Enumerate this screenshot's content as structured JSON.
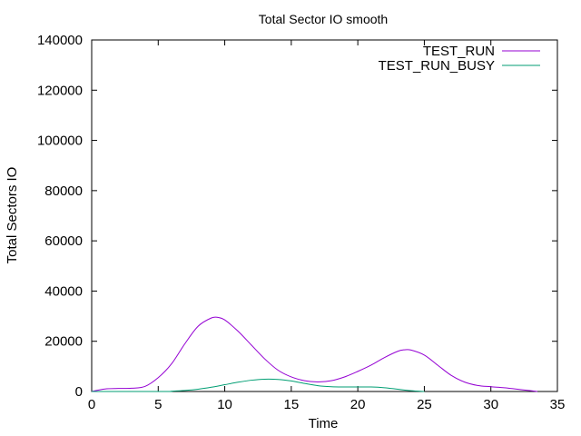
{
  "chart_data": {
    "type": "line",
    "title": "Total Sector IO smooth",
    "xlabel": "Time",
    "ylabel": "Total Sectors IO",
    "xlim": [
      0,
      35
    ],
    "ylim": [
      0,
      140000
    ],
    "xticks": [
      0,
      5,
      10,
      15,
      20,
      25,
      30,
      35
    ],
    "yticks": [
      0,
      20000,
      40000,
      60000,
      80000,
      100000,
      120000,
      140000
    ],
    "grid": false,
    "legend_position": "top-right",
    "series": [
      {
        "name": "TEST_RUN",
        "color": "#9400d3",
        "x": [
          0,
          1,
          2,
          3,
          4,
          5,
          6,
          7,
          8,
          9,
          9.5,
          10,
          11,
          12,
          13,
          14,
          15,
          16,
          17,
          18,
          19,
          20,
          21,
          22,
          23,
          23.5,
          24,
          25,
          26,
          27,
          28,
          29,
          30,
          31,
          32,
          33,
          33.5
        ],
        "y": [
          0,
          1000,
          1200,
          1300,
          2000,
          5500,
          11000,
          19000,
          26000,
          29300,
          29500,
          28500,
          24000,
          18500,
          13000,
          8500,
          5800,
          4300,
          3800,
          4300,
          5800,
          8000,
          10500,
          13500,
          16000,
          16600,
          16500,
          14500,
          10500,
          6500,
          3800,
          2400,
          1900,
          1500,
          900,
          300,
          0
        ]
      },
      {
        "name": "TEST_RUN_BUSY",
        "color": "#009e73",
        "x": [
          0,
          5.5,
          6,
          7,
          8,
          9,
          10,
          11,
          12,
          13,
          14,
          15,
          16,
          17,
          18,
          19,
          20,
          21,
          22,
          23,
          24,
          25
        ],
        "y": [
          0,
          0,
          100,
          400,
          900,
          1700,
          2700,
          3700,
          4500,
          4900,
          4800,
          4200,
          3200,
          2300,
          1900,
          1800,
          1800,
          1800,
          1500,
          900,
          300,
          0
        ]
      }
    ]
  }
}
